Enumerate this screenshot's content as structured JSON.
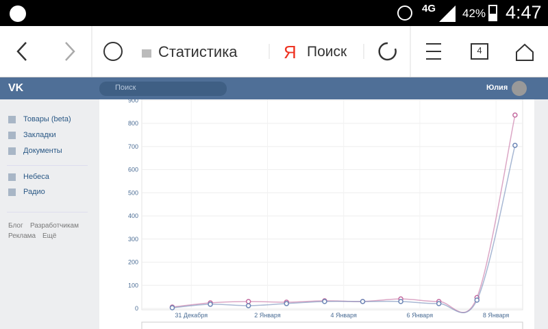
{
  "status_bar": {
    "network": "4G",
    "battery": "42%",
    "time": "4:47"
  },
  "browser": {
    "title": "Статистика",
    "search_logo": "Я",
    "search": "Поиск",
    "tabs": "4"
  },
  "vk_header": {
    "search_placeholder": "Поиск",
    "user": "Юлия"
  },
  "sidebar": {
    "items": [
      "Товары (beta)",
      "Закладки",
      "Документы",
      "Небеса",
      "Радио"
    ],
    "footer": [
      "Блог",
      "Разработчикам",
      "Реклама",
      "Ещё"
    ]
  },
  "chart_data": {
    "type": "line",
    "x": [
      -0.5,
      0.5,
      1.5,
      2.5,
      3.5,
      4.5,
      5.5,
      6.5,
      7.5,
      8.5
    ],
    "xlim": [
      -1.3,
      8.7
    ],
    "xticks": [
      {
        "value": 0,
        "label": "31 Декабря"
      },
      {
        "value": 2,
        "label": "2 Января"
      },
      {
        "value": 4,
        "label": "4 Января"
      },
      {
        "value": 6,
        "label": "6 Января"
      },
      {
        "value": 8,
        "label": "8 Января"
      }
    ],
    "ylim": [
      0,
      900
    ],
    "yticks": [
      0,
      100,
      200,
      300,
      400,
      500,
      600,
      700,
      800,
      900
    ],
    "grid": true,
    "series": [
      {
        "color": "#c36a9f",
        "values": [
          6,
          24,
          30,
          27,
          33,
          30,
          41,
          30,
          47,
          836
        ]
      },
      {
        "color": "#6d87b6",
        "values": [
          3,
          18,
          12,
          21,
          30,
          30,
          30,
          21,
          36,
          705
        ]
      }
    ]
  }
}
